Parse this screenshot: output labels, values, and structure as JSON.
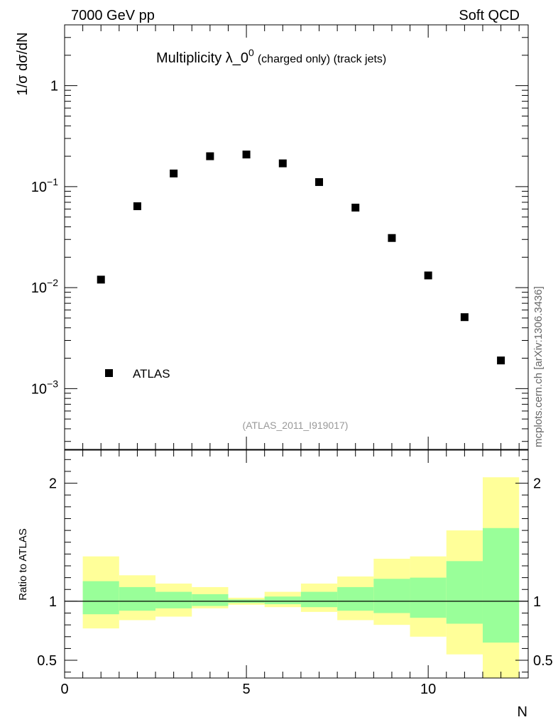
{
  "header": {
    "left": "7000 GeV pp",
    "right": "Soft QCD"
  },
  "side_label": "mcplots.cern.ch [arXiv:1306.3436]",
  "analysis_id": "(ATLAS_2011_I919017)",
  "x_axis": {
    "label": "N",
    "range": [
      0,
      12.75
    ],
    "ticks": [
      {
        "v": 0,
        "label": "0"
      },
      {
        "v": 5,
        "label": "5"
      },
      {
        "v": 10,
        "label": "10"
      }
    ]
  },
  "colors": {
    "band_outer": "#ffff99",
    "band_inner": "#99ff99",
    "marker": "#000000",
    "line": "#000000"
  },
  "chart_data": [
    {
      "type": "scatter",
      "panel": "main",
      "title": "Multiplicity λ_0",
      "title_sup": "0",
      "title_suffix": "(charged only) (track jets)",
      "ylabel": "1/σ dσ/dN",
      "y_scale": "log",
      "ylim": [
        0.00025,
        4
      ],
      "y_ticks": [
        {
          "v": 1,
          "label": "1"
        },
        {
          "v": 0.1,
          "base": "10",
          "exp": "−1"
        },
        {
          "v": 0.01,
          "base": "10",
          "exp": "−2"
        },
        {
          "v": 0.001,
          "base": "10",
          "exp": "−3"
        }
      ],
      "legend": {
        "position": "bottom-left",
        "entries": [
          "ATLAS"
        ]
      },
      "series": [
        {
          "name": "ATLAS",
          "x": [
            1,
            2,
            3,
            4,
            5,
            6,
            7,
            8,
            9,
            10,
            11,
            12
          ],
          "values": [
            0.012,
            0.064,
            0.135,
            0.2,
            0.208,
            0.17,
            0.111,
            0.062,
            0.031,
            0.0132,
            0.0051,
            0.0019
          ]
        }
      ]
    },
    {
      "type": "area",
      "panel": "ratio",
      "ylabel": "Ratio to ATLAS",
      "ylim": [
        0.35,
        2.28
      ],
      "y_ticks": [
        {
          "v": 0.5,
          "label": "0.5"
        },
        {
          "v": 1,
          "label": "1"
        },
        {
          "v": 2,
          "label": "2"
        }
      ],
      "reference_line": 1,
      "bins": [
        {
          "lo": 0.5,
          "hi": 1.5,
          "outer": [
            0.77,
            1.38
          ],
          "inner": [
            0.89,
            1.17
          ]
        },
        {
          "lo": 1.5,
          "hi": 2.5,
          "outer": [
            0.84,
            1.22
          ],
          "inner": [
            0.92,
            1.12
          ]
        },
        {
          "lo": 2.5,
          "hi": 3.5,
          "outer": [
            0.87,
            1.15
          ],
          "inner": [
            0.94,
            1.08
          ]
        },
        {
          "lo": 3.5,
          "hi": 4.5,
          "outer": [
            0.94,
            1.12
          ],
          "inner": [
            0.96,
            1.06
          ]
        },
        {
          "lo": 4.5,
          "hi": 5.5,
          "outer": [
            0.97,
            1.03
          ],
          "inner": [
            0.985,
            1.015
          ]
        },
        {
          "lo": 5.5,
          "hi": 6.5,
          "outer": [
            0.95,
            1.08
          ],
          "inner": [
            0.975,
            1.04
          ]
        },
        {
          "lo": 6.5,
          "hi": 7.5,
          "outer": [
            0.91,
            1.15
          ],
          "inner": [
            0.95,
            1.08
          ]
        },
        {
          "lo": 7.5,
          "hi": 8.5,
          "outer": [
            0.84,
            1.21
          ],
          "inner": [
            0.92,
            1.12
          ]
        },
        {
          "lo": 8.5,
          "hi": 9.5,
          "outer": [
            0.8,
            1.36
          ],
          "inner": [
            0.9,
            1.19
          ]
        },
        {
          "lo": 9.5,
          "hi": 10.5,
          "outer": [
            0.7,
            1.38
          ],
          "inner": [
            0.86,
            1.2
          ]
        },
        {
          "lo": 10.5,
          "hi": 11.5,
          "outer": [
            0.55,
            1.6
          ],
          "inner": [
            0.81,
            1.34
          ]
        },
        {
          "lo": 11.5,
          "hi": 12.5,
          "outer": [
            0.3,
            2.05
          ],
          "inner": [
            0.65,
            1.62
          ]
        }
      ]
    }
  ]
}
